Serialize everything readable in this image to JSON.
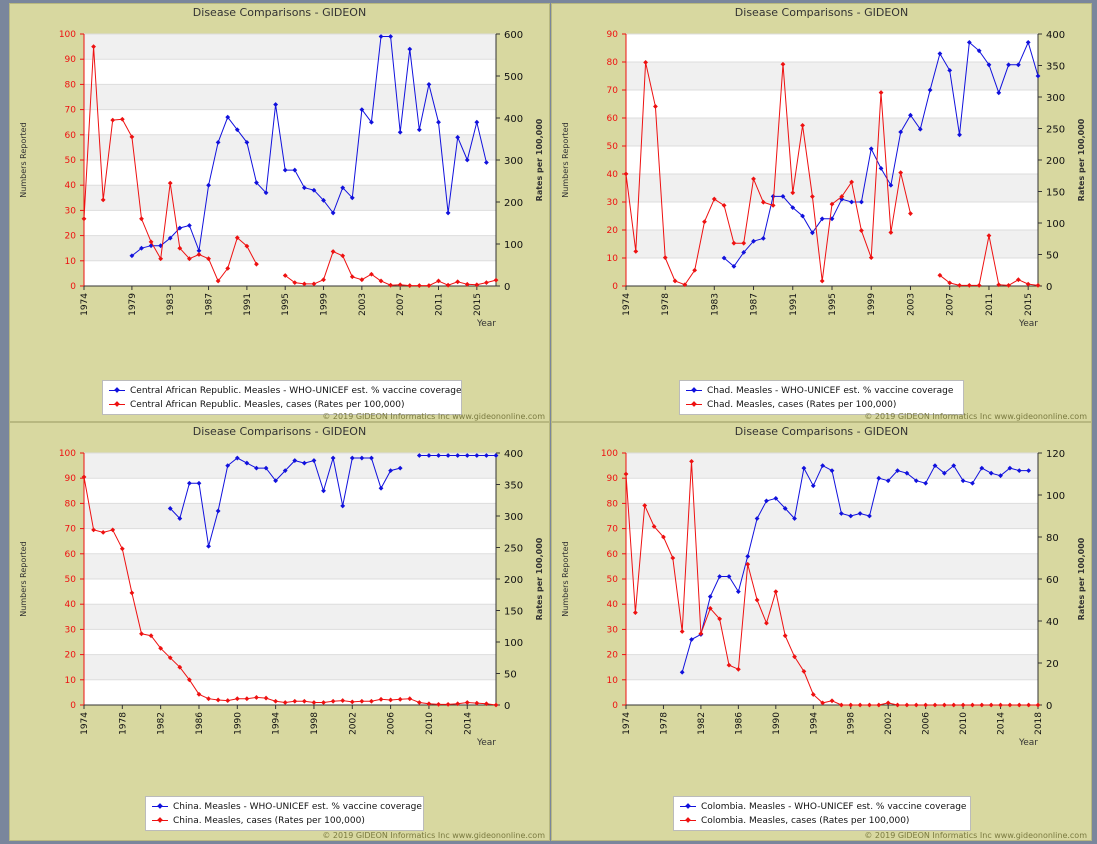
{
  "colors": {
    "blue_series": "#1111dd",
    "red_series": "#ee1111",
    "panel_bg": "#d8d8a0"
  },
  "common": {
    "title": "Disease Comparisons - GIDEON",
    "ylabel_left": "Numbers Reported",
    "ylabel_right": "Rates per 100,000",
    "xlabel": "Year",
    "copyright": "© 2019 GIDEON Informatics Inc www.gideononline.com"
  },
  "chart_data": [
    {
      "type": "line",
      "title": "Disease Comparisons - GIDEON",
      "xlabel": "Year",
      "ylabel": "Numbers Reported",
      "ylabel_right": "Rates per 100,000",
      "xlim": [
        1974,
        2017
      ],
      "ylim_left": [
        0,
        100
      ],
      "ylim_right": [
        0,
        600
      ],
      "left_ticks": [
        0,
        10,
        20,
        30,
        40,
        50,
        60,
        70,
        80,
        90,
        100
      ],
      "right_ticks": [
        0,
        100,
        200,
        300,
        400,
        500,
        600
      ],
      "x_ticks": [
        1974,
        1979,
        1983,
        1987,
        1991,
        1995,
        1999,
        2003,
        2007,
        2011,
        2015
      ],
      "series": [
        {
          "name": "Central African Republic. Measles - WHO-UNICEF est. % vaccine coverage",
          "axis": "left",
          "color": "#1111dd",
          "x": [
            1979,
            1980,
            1981,
            1982,
            1983,
            1984,
            1985,
            1986,
            1987,
            1988,
            1989,
            1990,
            1991,
            1992,
            1993,
            1994,
            1995,
            1996,
            1997,
            1998,
            1999,
            2000,
            2001,
            2002,
            2003,
            2004,
            2005,
            2006,
            2007,
            2008,
            2009,
            2010,
            2011,
            2012,
            2013,
            2014,
            2015,
            2016,
            2017
          ],
          "values": [
            12,
            15,
            16,
            16,
            19,
            23,
            24,
            14,
            40,
            57,
            67,
            62,
            57,
            41,
            37,
            72,
            46,
            46,
            39,
            38,
            34,
            29,
            39,
            35,
            70,
            65,
            99,
            99,
            61,
            94,
            62,
            80,
            65,
            29,
            59,
            50,
            65,
            49,
            null
          ]
        },
        {
          "name": "Central African Republic. Measles, cases (Rates per 100,000)",
          "axis": "right",
          "color": "#ee1111",
          "x": [
            1974,
            1975,
            1976,
            1977,
            1978,
            1979,
            1980,
            1981,
            1982,
            1983,
            1984,
            1985,
            1986,
            1987,
            1988,
            1989,
            1990,
            1991,
            1992,
            1993,
            1994,
            1995,
            1996,
            1997,
            1998,
            1999,
            2000,
            2001,
            2002,
            2003,
            2004,
            2005,
            2006,
            2007,
            2008,
            2009,
            2010,
            2011,
            2012,
            2013,
            2014,
            2015,
            2016,
            2017
          ],
          "values": [
            160,
            570,
            205,
            395,
            397,
            355,
            160,
            105,
            65,
            245,
            90,
            65,
            75,
            65,
            12,
            42,
            115,
            95,
            52,
            null,
            null,
            25,
            8,
            5,
            5,
            15,
            82,
            72,
            22,
            15,
            28,
            12,
            2,
            3,
            1,
            1,
            1,
            12,
            2,
            10,
            4,
            3,
            8,
            14
          ]
        }
      ]
    },
    {
      "type": "line",
      "title": "Disease Comparisons - GIDEON",
      "xlabel": "Year",
      "ylabel": "Numbers Reported",
      "ylabel_right": "Rates per 100,000",
      "xlim": [
        1974,
        2016
      ],
      "ylim_left": [
        0,
        90
      ],
      "ylim_right": [
        0,
        400
      ],
      "left_ticks": [
        0,
        10,
        20,
        30,
        40,
        50,
        60,
        70,
        80,
        90
      ],
      "right_ticks": [
        0,
        50,
        100,
        150,
        200,
        250,
        300,
        350,
        400
      ],
      "x_ticks": [
        1974,
        1978,
        1983,
        1987,
        1991,
        1995,
        1999,
        2003,
        2007,
        2011,
        2015
      ],
      "series": [
        {
          "name": "Chad. Measles - WHO-UNICEF est. % vaccine coverage",
          "axis": "left",
          "color": "#1111dd",
          "x": [
            1984,
            1985,
            1986,
            1987,
            1988,
            1989,
            1990,
            1991,
            1992,
            1993,
            1994,
            1995,
            1996,
            1997,
            1998,
            1999,
            2000,
            2001,
            2002,
            2003,
            2004,
            2005,
            2006,
            2007,
            2008,
            2009,
            2010,
            2011,
            2012,
            2013,
            2014,
            2015,
            2016
          ],
          "values": [
            10,
            7,
            12,
            16,
            17,
            32,
            32,
            28,
            25,
            19,
            24,
            24,
            31,
            30,
            30,
            49,
            42,
            36,
            55,
            61,
            56,
            70,
            83,
            77,
            54,
            87,
            84,
            79,
            69,
            79,
            79,
            87,
            75
          ]
        },
        {
          "name": "Chad. Measles, cases (Rates per 100,000)",
          "axis": "right",
          "color": "#ee1111",
          "x": [
            1974,
            1975,
            1976,
            1977,
            1978,
            1979,
            1980,
            1981,
            1982,
            1983,
            1984,
            1985,
            1986,
            1987,
            1988,
            1989,
            1990,
            1991,
            1992,
            1993,
            1994,
            1995,
            1996,
            1997,
            1998,
            1999,
            2000,
            2001,
            2002,
            2003,
            2004,
            2005,
            2006,
            2007,
            2008,
            2009,
            2010,
            2011,
            2012,
            2013,
            2014,
            2015,
            2016
          ],
          "values": [
            178,
            55,
            355,
            285,
            45,
            8,
            2,
            25,
            102,
            138,
            128,
            68,
            68,
            170,
            133,
            128,
            352,
            148,
            255,
            142,
            8,
            130,
            142,
            165,
            88,
            45,
            307,
            85,
            180,
            115,
            null,
            null,
            17,
            5,
            1,
            1,
            1,
            80,
            2,
            1,
            10,
            3,
            1
          ]
        }
      ]
    },
    {
      "type": "line",
      "title": "Disease Comparisons - GIDEON",
      "xlabel": "Year",
      "ylabel": "Numbers Reported",
      "ylabel_right": "Rates per 100,000",
      "xlim": [
        1974,
        2017
      ],
      "ylim_left": [
        0,
        100
      ],
      "ylim_right": [
        0,
        400
      ],
      "left_ticks": [
        0,
        10,
        20,
        30,
        40,
        50,
        60,
        70,
        80,
        90,
        100
      ],
      "right_ticks": [
        0,
        50,
        100,
        150,
        200,
        250,
        300,
        350,
        400
      ],
      "x_ticks": [
        1974,
        1978,
        1982,
        1986,
        1990,
        1994,
        1998,
        2002,
        2006,
        2010,
        2014
      ],
      "series": [
        {
          "name": "China. Measles - WHO-UNICEF est. % vaccine coverage",
          "axis": "left",
          "color": "#1111dd",
          "x": [
            1983,
            1984,
            1985,
            1986,
            1987,
            1988,
            1989,
            1990,
            1991,
            1992,
            1993,
            1994,
            1995,
            1996,
            1997,
            1998,
            1999,
            2000,
            2001,
            2002,
            2003,
            2004,
            2005,
            2006,
            2007,
            2008,
            2009,
            2010,
            2011,
            2012,
            2013,
            2014,
            2015,
            2016,
            2017
          ],
          "values": [
            78,
            74,
            88,
            88,
            63,
            77,
            95,
            98,
            96,
            94,
            94,
            89,
            93,
            97,
            96,
            97,
            85,
            98,
            79,
            98,
            98,
            98,
            86,
            93,
            94,
            null,
            99,
            99,
            99,
            99,
            99,
            99,
            99,
            99,
            99
          ]
        },
        {
          "name": "China. Measles, cases (Rates per 100,000)",
          "axis": "right",
          "color": "#ee1111",
          "x": [
            1974,
            1975,
            1976,
            1977,
            1978,
            1979,
            1980,
            1981,
            1982,
            1983,
            1984,
            1985,
            1986,
            1987,
            1988,
            1989,
            1990,
            1991,
            1992,
            1993,
            1994,
            1995,
            1996,
            1997,
            1998,
            1999,
            2000,
            2001,
            2002,
            2003,
            2004,
            2005,
            2006,
            2007,
            2008,
            2009,
            2010,
            2011,
            2012,
            2013,
            2014,
            2015,
            2016,
            2017
          ],
          "values": [
            362,
            278,
            274,
            278,
            248,
            178,
            113,
            110,
            90,
            75,
            60,
            40,
            17,
            10,
            8,
            7,
            10,
            10,
            12,
            11,
            6,
            4,
            6,
            6,
            4,
            4,
            6,
            7,
            5,
            6,
            6,
            9,
            8,
            9,
            10,
            4,
            2,
            1,
            1,
            2,
            4,
            3,
            2,
            0
          ]
        }
      ]
    },
    {
      "type": "line",
      "title": "Disease Comparisons - GIDEON",
      "xlabel": "Year",
      "ylabel": "Numbers Reported",
      "ylabel_right": "Rates per 100,000",
      "xlim": [
        1974,
        2018
      ],
      "ylim_left": [
        0,
        100
      ],
      "ylim_right": [
        0,
        120
      ],
      "left_ticks": [
        0,
        10,
        20,
        30,
        40,
        50,
        60,
        70,
        80,
        90,
        100
      ],
      "right_ticks": [
        0,
        20,
        40,
        60,
        80,
        100,
        120
      ],
      "x_ticks": [
        1974,
        1978,
        1982,
        1986,
        1990,
        1994,
        1998,
        2002,
        2006,
        2010,
        2014,
        2018
      ],
      "series": [
        {
          "name": "Colombia. Measles - WHO-UNICEF est. % vaccine coverage",
          "axis": "left",
          "color": "#1111dd",
          "x": [
            1980,
            1981,
            1982,
            1983,
            1984,
            1985,
            1986,
            1987,
            1988,
            1989,
            1990,
            1991,
            1992,
            1993,
            1994,
            1995,
            1996,
            1997,
            1998,
            1999,
            2000,
            2001,
            2002,
            2003,
            2004,
            2005,
            2006,
            2007,
            2008,
            2009,
            2010,
            2011,
            2012,
            2013,
            2014,
            2015,
            2016,
            2017
          ],
          "values": [
            13,
            26,
            28,
            43,
            51,
            51,
            45,
            59,
            74,
            81,
            82,
            78,
            74,
            94,
            87,
            95,
            93,
            76,
            75,
            76,
            75,
            90,
            89,
            93,
            92,
            89,
            88,
            95,
            92,
            95,
            89,
            88,
            94,
            92,
            91,
            94,
            93,
            93
          ]
        },
        {
          "name": "Colombia. Measles, cases (Rates per 100,000)",
          "axis": "right",
          "color": "#ee1111",
          "x": [
            1974,
            1975,
            1976,
            1977,
            1978,
            1979,
            1980,
            1981,
            1982,
            1983,
            1984,
            1985,
            1986,
            1987,
            1988,
            1989,
            1990,
            1991,
            1992,
            1993,
            1994,
            1995,
            1996,
            1997,
            1998,
            1999,
            2000,
            2001,
            2002,
            2003,
            2004,
            2005,
            2006,
            2007,
            2008,
            2009,
            2010,
            2011,
            2012,
            2013,
            2014,
            2015,
            2016,
            2017,
            2018
          ],
          "values": [
            110,
            44,
            95,
            85,
            80,
            70,
            35,
            116,
            34,
            46,
            41,
            19,
            17,
            67,
            50,
            39,
            54,
            33,
            23,
            16,
            5,
            1,
            2,
            0,
            0,
            0,
            0,
            0,
            1,
            0,
            0,
            0,
            0,
            0,
            0,
            0,
            0,
            0,
            0,
            0,
            0,
            0,
            0,
            0,
            0
          ]
        }
      ]
    }
  ]
}
